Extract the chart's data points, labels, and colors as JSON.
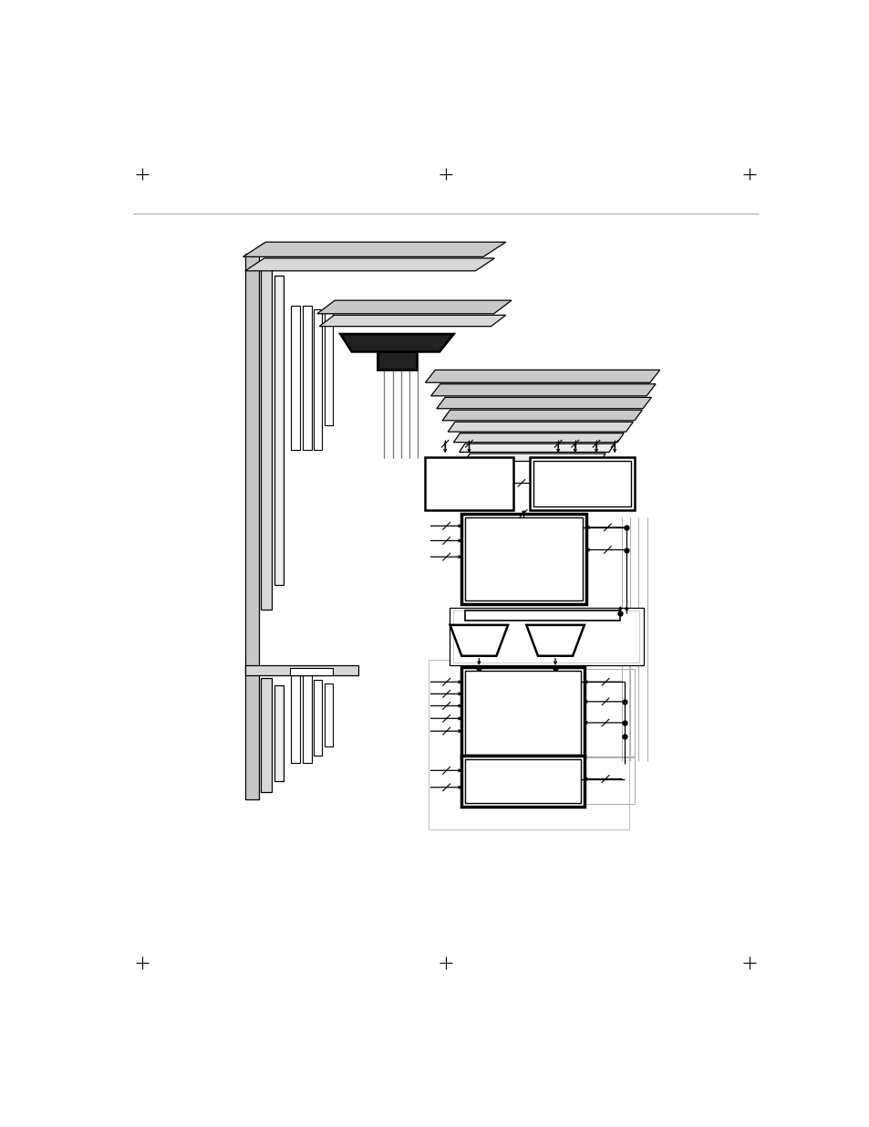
{
  "fig_w": 9.54,
  "fig_h": 12.35,
  "bg": "#ffffff",
  "gray1": "#c8c8c8",
  "gray2": "#d8d8d8",
  "gray3": "#eeeeee",
  "dark": "#222222"
}
